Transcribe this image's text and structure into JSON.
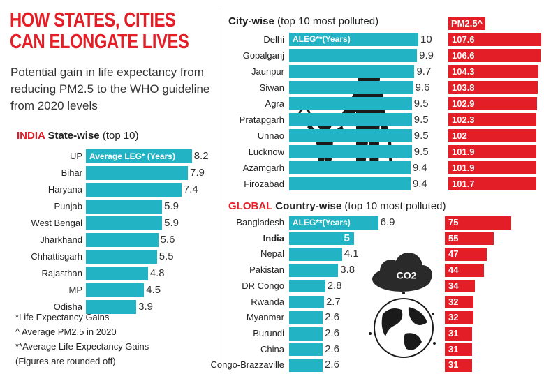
{
  "header": {
    "title": "HOW STATES, CITIES CAN ELONGATE LIVES",
    "subtitle": "Potential gain in life expectancy from reducing PM2.5 to the WHO guideline from 2020 levels"
  },
  "chart_data": [
    {
      "type": "bar",
      "orientation": "horizontal",
      "title_prefix": "INDIA",
      "title": "State-wise",
      "subtitle": "(top 10)",
      "categories": [
        "UP",
        "Bihar",
        "Haryana",
        "Punjab",
        "West Bengal",
        "Jharkhand",
        "Chhattisgarh",
        "Rajasthan",
        "MP",
        "Odisha"
      ],
      "series": [
        {
          "name": "Average LEG* (Years)",
          "color": "#22b3c4",
          "values": [
            8.2,
            7.9,
            7.4,
            5.9,
            5.9,
            5.6,
            5.5,
            4.8,
            4.5,
            3.9
          ]
        }
      ]
    },
    {
      "type": "bar",
      "orientation": "horizontal",
      "title": "City-wise",
      "subtitle": "(top 10 most polluted)",
      "categories": [
        "Delhi",
        "Gopalganj",
        "Jaunpur",
        "Siwan",
        "Agra",
        "Pratapgarh",
        "Unnao",
        "Lucknow",
        "Azamgarh",
        "Firozabad"
      ],
      "series": [
        {
          "name": "ALEG**(Years)",
          "color": "#22b3c4",
          "values": [
            10,
            9.9,
            9.7,
            9.6,
            9.5,
            9.5,
            9.5,
            9.5,
            9.4,
            9.4
          ]
        },
        {
          "name": "PM2.5^",
          "color": "#e41e26",
          "values": [
            107.6,
            106.6,
            104.3,
            103.8,
            102.9,
            102.3,
            102,
            101.9,
            101.9,
            101.7
          ]
        }
      ]
    },
    {
      "type": "bar",
      "orientation": "horizontal",
      "title_prefix": "GLOBAL",
      "title": "Country-wise",
      "subtitle": "(top 10 most polluted)",
      "categories": [
        "Bangladesh",
        "India",
        "Nepal",
        "Pakistan",
        "DR Congo",
        "Rwanda",
        "Myanmar",
        "Burundi",
        "China",
        "Congo-Brazzaville"
      ],
      "series": [
        {
          "name": "ALEG**(Years)",
          "color": "#22b3c4",
          "values": [
            6.9,
            5,
            4.1,
            3.8,
            2.8,
            2.7,
            2.6,
            2.6,
            2.6,
            2.6
          ]
        },
        {
          "color": "#e41e26",
          "values": [
            75,
            55,
            47,
            44,
            34,
            32,
            32,
            31,
            31,
            31
          ]
        }
      ]
    }
  ],
  "notes": [
    "*Life Expectancy Gains",
    "^ Average PM2.5 in 2020",
    "**Average Life Expectancy Gains",
    "(Figures are rounded off)"
  ],
  "icon_label": "CO2"
}
